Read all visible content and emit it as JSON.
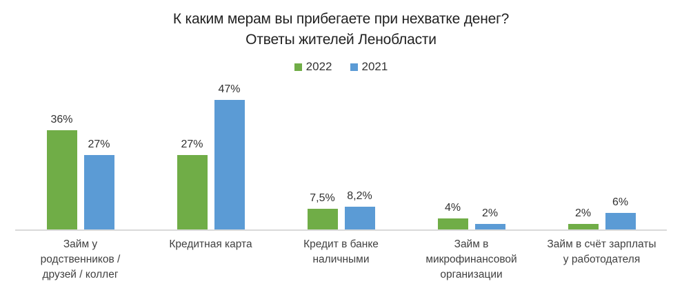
{
  "title": {
    "line1": "К каким мерам вы прибегаете при нехватке денег?",
    "line2": "Ответы жителей Ленобласти"
  },
  "legend": {
    "items": [
      {
        "label": "2022",
        "color": "#70AD47"
      },
      {
        "label": "2021",
        "color": "#5B9BD5"
      }
    ]
  },
  "chart_data": {
    "type": "bar",
    "title": "К каким мерам вы прибегаете при нехватке денег? Ответы жителей Ленобласти",
    "categories": [
      "Займ у родственников / друзей / коллег",
      "Кредитная карта",
      "Кредит в банке наличными",
      "Займ в микрофинансовой организации",
      "Займ в счёт зарплаты у работодателя"
    ],
    "category_lines": [
      [
        "Займ у",
        "родственников /",
        "друзей / коллег"
      ],
      [
        "Кредитная карта"
      ],
      [
        "Кредит в банке",
        "наличными"
      ],
      [
        "Займ в",
        "микрофинансовой",
        "организации"
      ],
      [
        "Займ в счёт зарплаты",
        "у работодателя"
      ]
    ],
    "series": [
      {
        "name": "2022",
        "color": "#70AD47",
        "values": [
          36,
          27,
          7.5,
          4,
          2
        ],
        "value_labels": [
          "36%",
          "27%",
          "7,5%",
          "4%",
          "2%"
        ]
      },
      {
        "name": "2021",
        "color": "#5B9BD5",
        "values": [
          27,
          47,
          8.2,
          2,
          6
        ],
        "value_labels": [
          "27%",
          "47%",
          "8,2%",
          "2%",
          "6%"
        ]
      }
    ],
    "xlabel": "",
    "ylabel": "",
    "ylim": [
      0,
      50
    ],
    "grid": false,
    "legend_position": "top",
    "axis_color": "#D9D9D9",
    "value_suffix": "%",
    "decimal_separator": ","
  }
}
